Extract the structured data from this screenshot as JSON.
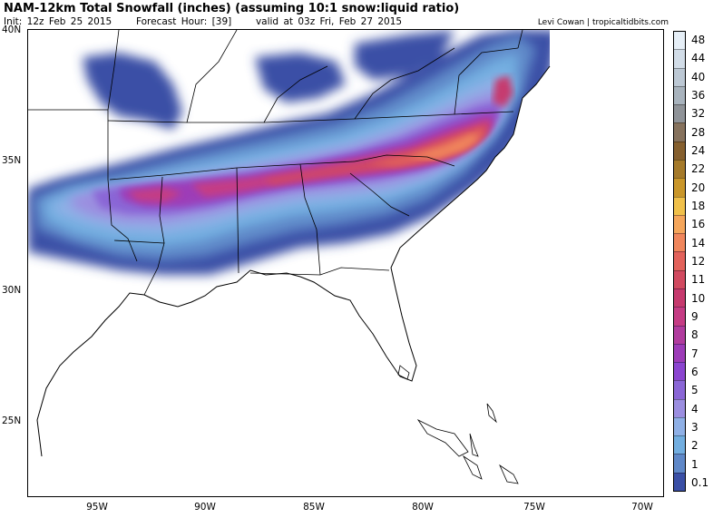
{
  "header": {
    "title": "NAM-12km Total Snowfall (inches) (assuming 10:1 snow:liquid ratio)",
    "init": "Init: 12z Feb 25 2015",
    "forecast_hour": "Forecast Hour: [39]",
    "valid": "valid at 03z Fri, Feb 27 2015",
    "credit": "Levi Cowan | tropicaltidbits.com"
  },
  "map": {
    "lat_labels": [
      "40N",
      "35N",
      "30N",
      "25N"
    ],
    "lon_labels": [
      "95W",
      "90W",
      "85W",
      "80W",
      "75W",
      "70W"
    ]
  },
  "colorbar": {
    "levels": [
      "48",
      "44",
      "40",
      "36",
      "32",
      "28",
      "24",
      "22",
      "20",
      "18",
      "16",
      "14",
      "12",
      "11",
      "10",
      "9",
      "8",
      "7",
      "6",
      "5",
      "4",
      "3",
      "2",
      "1",
      "0.1"
    ],
    "colors": [
      "#e6eff7",
      "#d2dde8",
      "#bcc8d4",
      "#a8b3bd",
      "#8f9398",
      "#86725d",
      "#86602f",
      "#a57a2a",
      "#c9962a",
      "#f0c04a",
      "#f5a65b",
      "#f0865c",
      "#e2625b",
      "#d14a60",
      "#c63a6e",
      "#c53c84",
      "#b13c9e",
      "#9d3cb8",
      "#8b45d0",
      "#8a66d6",
      "#9b8ee0",
      "#8fb0e6",
      "#72aee0",
      "#5f88c8",
      "#3a4fa6"
    ]
  }
}
